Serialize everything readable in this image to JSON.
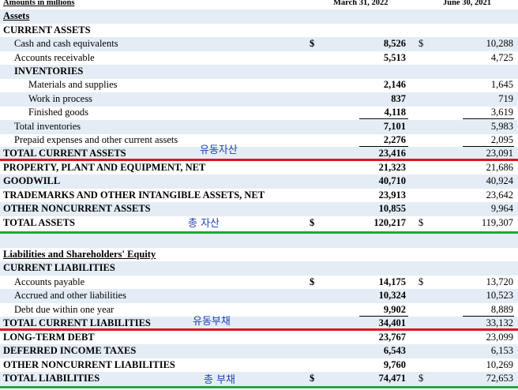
{
  "header": {
    "units": "Amounts in millions",
    "col1": "March 31, 2022",
    "col2": "June 30, 2021"
  },
  "rows": [
    {
      "label": "Assets",
      "indent": 0,
      "style": "heading-ul",
      "shade": true
    },
    {
      "label": "CURRENT ASSETS",
      "indent": 0,
      "style": "bold",
      "shade": false
    },
    {
      "label": "Cash and cash equivalents",
      "indent": 1,
      "style": "normal",
      "shade": true,
      "dollar1": "$",
      "v1": "8,526",
      "dollar2": "$",
      "v2": "10,288"
    },
    {
      "label": "Accounts receivable",
      "indent": 1,
      "style": "normal",
      "shade": false,
      "v1": "5,513",
      "v2": "4,725"
    },
    {
      "label": "INVENTORIES",
      "indent": 1,
      "style": "bold",
      "shade": true
    },
    {
      "label": "Materials and supplies",
      "indent": 2,
      "style": "normal",
      "shade": false,
      "v1": "2,146",
      "v2": "1,645"
    },
    {
      "label": "Work in process",
      "indent": 2,
      "style": "normal",
      "shade": true,
      "v1": "837",
      "v2": "719"
    },
    {
      "label": "Finished goods",
      "indent": 2,
      "style": "normal",
      "shade": false,
      "v1": "4,118",
      "v2": "3,619"
    },
    {
      "label": "Total inventories",
      "indent": 1,
      "style": "normal",
      "shade": true,
      "v1": "7,101",
      "v2": "5,983"
    },
    {
      "label": "Prepaid expenses and other current assets",
      "indent": 1,
      "style": "normal",
      "shade": false,
      "v1": "2,276",
      "v2": "2,095"
    },
    {
      "label": "TOTAL CURRENT ASSETS",
      "indent": 0,
      "style": "bold",
      "shade": true,
      "v1": "23,416",
      "v2": "23,091"
    },
    {
      "label": "PROPERTY, PLANT AND EQUIPMENT, NET",
      "indent": 0,
      "style": "bold",
      "shade": false,
      "v1": "21,323",
      "v2": "21,686"
    },
    {
      "label": "GOODWILL",
      "indent": 0,
      "style": "bold",
      "shade": true,
      "v1": "40,710",
      "v2": "40,924"
    },
    {
      "label": "TRADEMARKS AND OTHER INTANGIBLE ASSETS, NET",
      "indent": 0,
      "style": "bold",
      "shade": false,
      "v1": "23,913",
      "v2": "23,642"
    },
    {
      "label": "OTHER NONCURRENT ASSETS",
      "indent": 0,
      "style": "bold",
      "shade": true,
      "v1": "10,855",
      "v2": "9,964"
    },
    {
      "label": "TOTAL ASSETS",
      "indent": 0,
      "style": "bold",
      "shade": false,
      "dollar1": "$",
      "v1": "120,217",
      "dollar2": "$",
      "v2": "119,307"
    },
    {
      "label": "",
      "indent": 0,
      "style": "normal",
      "shade": true
    },
    {
      "label": "Liabilities and Shareholders' Equity",
      "indent": 0,
      "style": "heading-ul",
      "shade": false
    },
    {
      "label": "CURRENT LIABILITIES",
      "indent": 0,
      "style": "bold",
      "shade": true
    },
    {
      "label": "Accounts payable",
      "indent": 1,
      "style": "normal",
      "shade": false,
      "dollar1": "$",
      "v1": "14,175",
      "dollar2": "$",
      "v2": "13,720"
    },
    {
      "label": "Accrued and other liabilities",
      "indent": 1,
      "style": "normal",
      "shade": true,
      "v1": "10,324",
      "v2": "10,523"
    },
    {
      "label": "Debt due within one year",
      "indent": 1,
      "style": "normal",
      "shade": false,
      "v1": "9,902",
      "v2": "8,889"
    },
    {
      "label": "TOTAL CURRENT LIABILITIES",
      "indent": 0,
      "style": "bold",
      "shade": true,
      "v1": "34,401",
      "v2": "33,132"
    },
    {
      "label": "LONG-TERM DEBT",
      "indent": 0,
      "style": "bold",
      "shade": false,
      "v1": "23,767",
      "v2": "23,099"
    },
    {
      "label": "DEFERRED INCOME TAXES",
      "indent": 0,
      "style": "bold",
      "shade": true,
      "v1": "6,543",
      "v2": "6,153"
    },
    {
      "label": "OTHER NONCURRENT LIABILITIES",
      "indent": 0,
      "style": "bold",
      "shade": false,
      "v1": "9,760",
      "v2": "10,269"
    },
    {
      "label": "TOTAL LIABILITIES",
      "indent": 0,
      "style": "bold",
      "shade": true,
      "dollar1": "$",
      "v1": "74,471",
      "dollar2": "$",
      "v2": "72,653"
    }
  ],
  "annotations": [
    {
      "text": "유동자산",
      "color": "#1f3fb5",
      "line_color": "#e0141b"
    },
    {
      "text": "총 자산",
      "color": "#1f3fb5",
      "line_color": "#1fa83a"
    },
    {
      "text": "유동부채",
      "color": "#1f3fb5",
      "line_color": "#e0141b"
    },
    {
      "text": "총 부채",
      "color": "#1f3fb5",
      "line_color": "#1fa83a"
    }
  ]
}
